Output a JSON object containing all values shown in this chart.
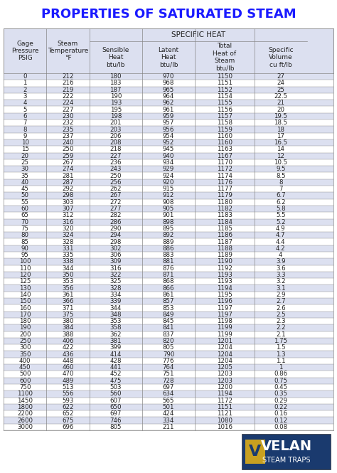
{
  "title": "PROPERTIES OF SATURATED STEAM",
  "col_headers_line1": [
    "Gage\nPressure\nPSIG",
    "Steam\nTemperature\n°F",
    "SPECIFIC HEAT",
    "",
    "",
    ""
  ],
  "col_headers_line2": [
    "",
    "",
    "Sensible\nHeat\nbtu/lb",
    "Latent\nHeat\nbtu/lb",
    "Total\nHeat of\nSteam\nbtu/lb",
    "Specific\nVolume\ncu ft/lb"
  ],
  "rows": [
    [
      0,
      212,
      180,
      970,
      1150,
      27.0
    ],
    [
      1,
      216,
      183,
      968,
      1151,
      24.0
    ],
    [
      2,
      219,
      187,
      965,
      1152,
      25.0
    ],
    [
      3,
      222,
      190,
      964,
      1154,
      22.5
    ],
    [
      4,
      224,
      193,
      962,
      1155,
      21.0
    ],
    [
      5,
      227,
      195,
      961,
      1156,
      20.0
    ],
    [
      6,
      230,
      198,
      959,
      1157,
      19.5
    ],
    [
      7,
      232,
      201,
      957,
      1158,
      18.5
    ],
    [
      8,
      235,
      203,
      956,
      1159,
      18.0
    ],
    [
      9,
      237,
      206,
      954,
      1160,
      17.0
    ],
    [
      10,
      240,
      208,
      952,
      1160,
      16.5
    ],
    [
      15,
      250,
      218,
      945,
      1163,
      14.0
    ],
    [
      20,
      259,
      227,
      940,
      1167,
      12.0
    ],
    [
      25,
      267,
      236,
      934,
      1170,
      10.5
    ],
    [
      30,
      274,
      243,
      929,
      1172,
      9.5
    ],
    [
      35,
      281,
      250,
      924,
      1174,
      8.5
    ],
    [
      40,
      287,
      256,
      920,
      1176,
      8.0
    ],
    [
      45,
      292,
      262,
      915,
      1177,
      7.0
    ],
    [
      50,
      298,
      267,
      912,
      1179,
      6.7
    ],
    [
      55,
      303,
      272,
      908,
      1180,
      6.2
    ],
    [
      60,
      307,
      277,
      905,
      1182,
      5.8
    ],
    [
      65,
      312,
      282,
      901,
      1183,
      5.5
    ],
    [
      70,
      316,
      286,
      898,
      1184,
      5.2
    ],
    [
      75,
      320,
      290,
      895,
      1185,
      4.9
    ],
    [
      80,
      324,
      294,
      892,
      1186,
      4.7
    ],
    [
      85,
      328,
      298,
      889,
      1187,
      4.4
    ],
    [
      90,
      331,
      302,
      886,
      1188,
      4.2
    ],
    [
      95,
      335,
      306,
      883,
      1189,
      4.0
    ],
    [
      100,
      338,
      309,
      881,
      1190,
      3.9
    ],
    [
      110,
      344,
      316,
      876,
      1192,
      3.6
    ],
    [
      120,
      350,
      322,
      871,
      1193,
      3.3
    ],
    [
      125,
      353,
      325,
      868,
      1193,
      3.2
    ],
    [
      130,
      356,
      328,
      866,
      1194,
      3.1
    ],
    [
      140,
      361,
      334,
      861,
      1195,
      2.9
    ],
    [
      150,
      366,
      339,
      857,
      1196,
      2.7
    ],
    [
      160,
      371,
      344,
      853,
      1197,
      2.6
    ],
    [
      170,
      375,
      348,
      849,
      1197,
      2.5
    ],
    [
      180,
      380,
      353,
      845,
      1198,
      2.3
    ],
    [
      190,
      384,
      358,
      841,
      1199,
      2.2
    ],
    [
      200,
      388,
      362,
      837,
      1199,
      2.1
    ],
    [
      250,
      406,
      381,
      820,
      1201,
      1.75
    ],
    [
      300,
      422,
      399,
      805,
      1204,
      1.5
    ],
    [
      350,
      436,
      414,
      790,
      1204,
      1.3
    ],
    [
      400,
      448,
      428,
      776,
      1204,
      1.1
    ],
    [
      450,
      460,
      441,
      764,
      1205,
      1.0
    ],
    [
      500,
      470,
      452,
      751,
      1203,
      0.86
    ],
    [
      600,
      489,
      475,
      728,
      1203,
      0.75
    ],
    [
      750,
      513,
      503,
      697,
      1200,
      0.45
    ],
    [
      1100,
      556,
      560,
      634,
      1194,
      0.35
    ],
    [
      1450,
      593,
      607,
      565,
      1172,
      0.29
    ],
    [
      1800,
      622,
      650,
      501,
      1151,
      0.22
    ],
    [
      2200,
      652,
      697,
      424,
      1121,
      0.16
    ],
    [
      2600,
      675,
      746,
      334,
      1080,
      0.12
    ],
    [
      3000,
      696,
      805,
      211,
      1016,
      0.08
    ]
  ],
  "bg_color_light": "#dce0f0",
  "bg_color_dark": "#c8cce8",
  "header_bg": "#dce0f0",
  "title_color": "#1a1aff",
  "border_color": "#888888",
  "text_color": "#222222",
  "logo_bg": "#1a3a6e"
}
